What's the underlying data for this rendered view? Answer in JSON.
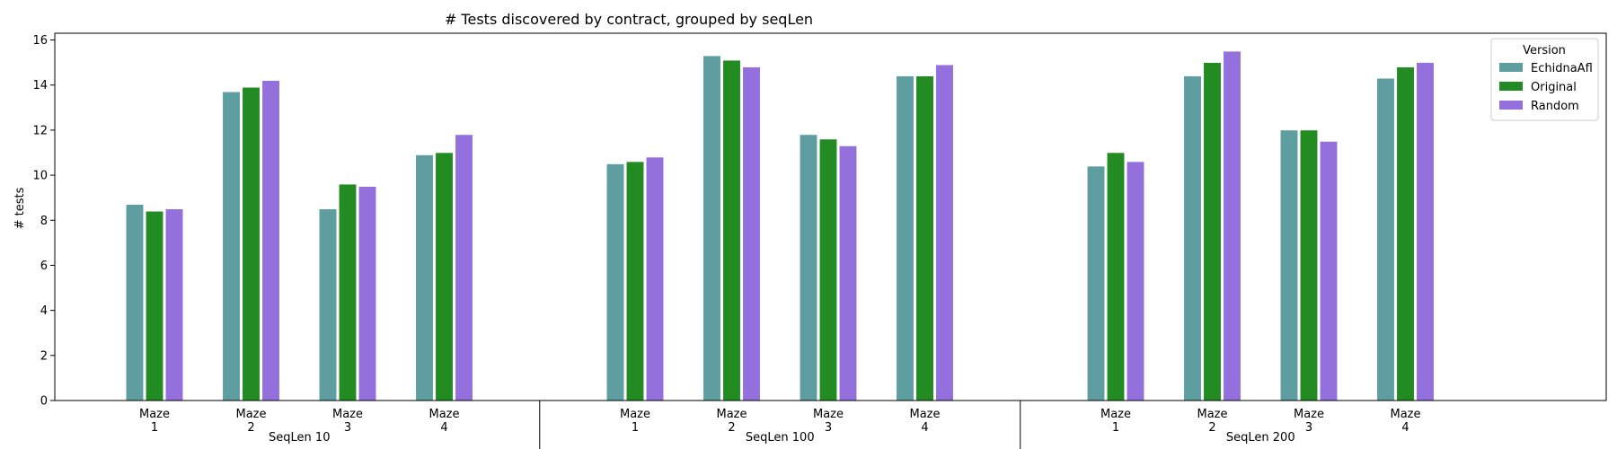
{
  "chart_data": {
    "type": "bar",
    "title": "# Tests discovered by contract, grouped by seqLen",
    "ylabel": "# tests",
    "xlabel": "",
    "ylim": [
      0,
      16.3
    ],
    "yticks": [
      0,
      2,
      4,
      6,
      8,
      10,
      12,
      14,
      16
    ],
    "grid": false,
    "legend_title": "Version",
    "legend_position": "top-right",
    "groups": [
      {
        "label": "SeqLen 10",
        "categories": [
          "Maze\n1",
          "Maze\n2",
          "Maze\n3",
          "Maze\n4"
        ]
      },
      {
        "label": "SeqLen 100",
        "categories": [
          "Maze\n1",
          "Maze\n2",
          "Maze\n3",
          "Maze\n4"
        ]
      },
      {
        "label": "SeqLen 200",
        "categories": [
          "Maze\n1",
          "Maze\n2",
          "Maze\n3",
          "Maze\n4"
        ]
      }
    ],
    "series": [
      {
        "name": "EchidnaAfl",
        "color": "#5f9ea0",
        "values": [
          8.7,
          13.7,
          8.5,
          10.9,
          10.5,
          15.3,
          11.8,
          14.4,
          10.4,
          14.4,
          12.0,
          14.3
        ]
      },
      {
        "name": "Original",
        "color": "#228b22",
        "values": [
          8.4,
          13.9,
          9.6,
          11.0,
          10.6,
          15.1,
          11.6,
          14.4,
          11.0,
          15.0,
          12.0,
          14.8
        ]
      },
      {
        "name": "Random",
        "color": "#9370db",
        "values": [
          8.5,
          14.2,
          9.5,
          11.8,
          10.8,
          14.8,
          11.3,
          14.9,
          10.6,
          15.5,
          11.5,
          15.0
        ]
      }
    ]
  }
}
